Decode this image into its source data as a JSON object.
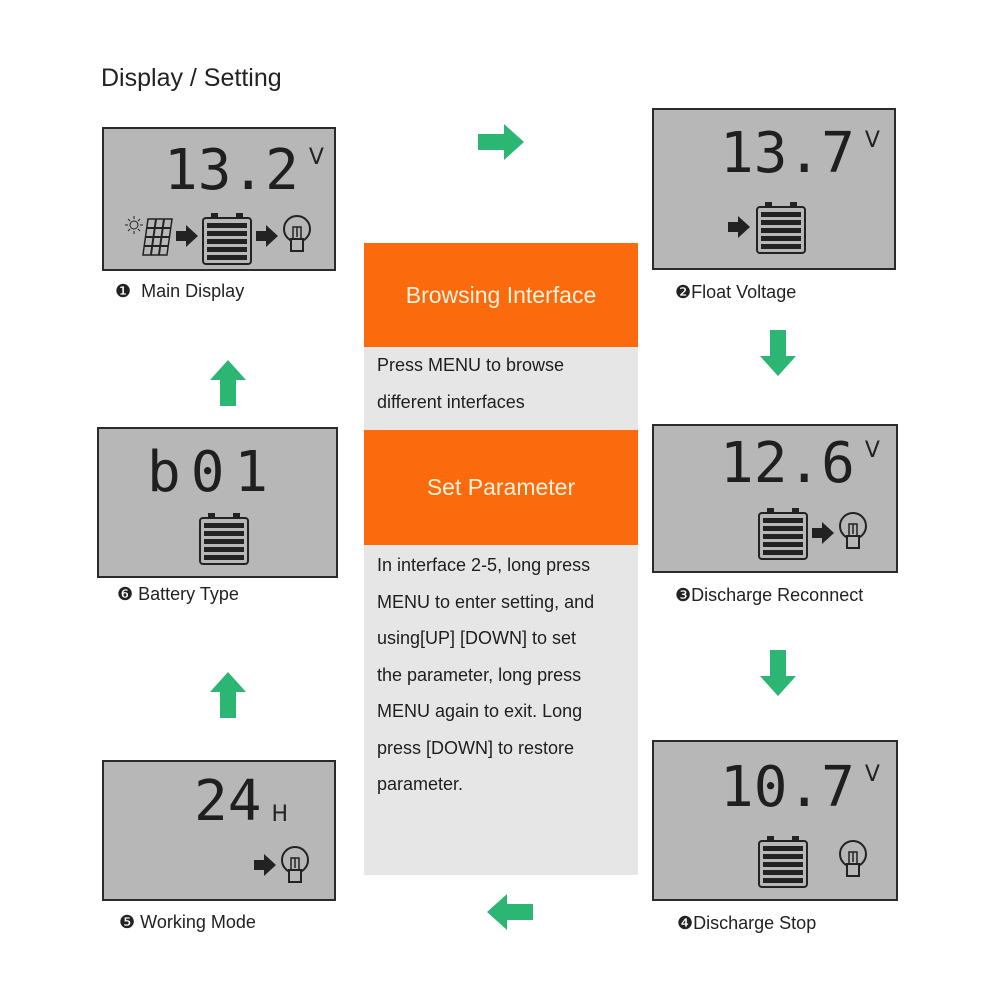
{
  "title": "Display / Setting",
  "colors": {
    "arrow": "#2bb673",
    "orange": "#fb6a0c",
    "lcd_bg": "#b7b7b7"
  },
  "panels": [
    {
      "number": "❶",
      "label": "Main Display",
      "reading": "13.2",
      "unit": "V",
      "icons": [
        "sun-icon",
        "solar-panel-icon",
        "arrow-icon",
        "battery-icon",
        "arrow-icon",
        "bulb-icon"
      ]
    },
    {
      "number": "❷",
      "label": "Float Voltage",
      "reading": "13.7",
      "unit": "V",
      "icons": [
        "arrow-icon",
        "battery-icon"
      ]
    },
    {
      "number": "❸",
      "label": "Discharge Reconnect",
      "reading": "12.6",
      "unit": "V",
      "icons": [
        "battery-icon",
        "arrow-icon",
        "bulb-icon"
      ]
    },
    {
      "number": "❹",
      "label": "Discharge Stop",
      "reading": "10.7",
      "unit": "V",
      "icons": [
        "battery-icon",
        "bulb-icon"
      ]
    },
    {
      "number": "❺",
      "label": "Working Mode",
      "reading": "24",
      "unit": "H",
      "icons": [
        "arrow-icon",
        "bulb-icon"
      ]
    },
    {
      "number": "❻",
      "label": "Battery Type",
      "reading": "b01",
      "unit": "",
      "icons": [
        "battery-icon"
      ]
    }
  ],
  "center": {
    "browsing_title": "Browsing Interface",
    "browsing_lines": [
      "Press MENU  to browse",
      "different  interfaces"
    ],
    "setting_title": "Set Parameter",
    "setting_lines": [
      "In interface 2-5, long press",
      "MENU to enter setting, and",
      "using[UP] [DOWN] to set",
      "the parameter,  long press",
      "MENU again to exit. Long",
      "press [DOWN] to restore",
      "parameter."
    ]
  }
}
